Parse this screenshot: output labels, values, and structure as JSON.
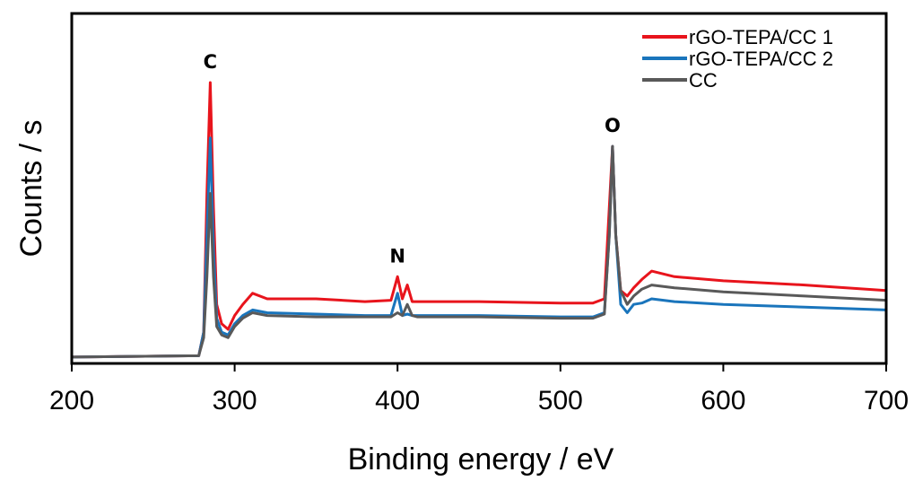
{
  "chart_data": {
    "type": "line",
    "title": "",
    "xlabel": "Binding energy / eV",
    "ylabel": "Counts / s",
    "xlim": [
      200,
      700
    ],
    "ylim": [
      0,
      100
    ],
    "x_ticks": [
      "200",
      "300",
      "400",
      "500",
      "600",
      "700"
    ],
    "grid": false,
    "legend_position": "top-right",
    "peak_labels": [
      {
        "text": "C",
        "x": 285
      },
      {
        "text": "N",
        "x": 400
      },
      {
        "text": "O",
        "x": 532
      }
    ],
    "series": [
      {
        "name": "rGO-TEPA/CC 1",
        "color": "#e8141c",
        "x": [
          200,
          278,
          281,
          283,
          285,
          287,
          289,
          292,
          296,
          300,
          305,
          311,
          320,
          350,
          380,
          396,
          400,
          403,
          406,
          409,
          412,
          450,
          500,
          520,
          527,
          530,
          532,
          534,
          537,
          541,
          545,
          550,
          556,
          570,
          600,
          650,
          700
        ],
        "y": [
          1,
          1.5,
          10,
          60,
          100,
          55,
          20,
          13,
          11,
          16,
          20,
          24,
          22,
          22,
          21,
          21.5,
          30,
          22,
          27,
          21,
          21,
          21,
          20.5,
          20.5,
          22,
          55,
          77,
          45,
          25,
          23,
          26,
          29,
          32,
          30,
          28.5,
          27,
          25
        ]
      },
      {
        "name": "rGO-TEPA/CC 2",
        "color": "#1a75bc",
        "x": [
          200,
          278,
          281,
          283,
          285,
          287,
          289,
          292,
          296,
          300,
          305,
          311,
          320,
          350,
          380,
          396,
          400,
          403,
          406,
          409,
          412,
          450,
          500,
          520,
          527,
          530,
          532,
          534,
          537,
          541,
          545,
          550,
          556,
          570,
          600,
          650,
          700
        ],
        "y": [
          1,
          1.5,
          10,
          45,
          80,
          40,
          15,
          10,
          9,
          13,
          16,
          18,
          17,
          16.5,
          16,
          16,
          24,
          16,
          16.5,
          16,
          16,
          16,
          15.5,
          15.5,
          17,
          45,
          77,
          45,
          20,
          17,
          20,
          20.5,
          22,
          21,
          20,
          19,
          18
        ]
      },
      {
        "name": "CC",
        "color": "#595959",
        "x": [
          200,
          278,
          281,
          283,
          285,
          287,
          289,
          292,
          296,
          300,
          305,
          311,
          320,
          350,
          380,
          396,
          400,
          403,
          406,
          409,
          412,
          450,
          500,
          520,
          527,
          530,
          532,
          534,
          537,
          541,
          545,
          550,
          556,
          570,
          600,
          650,
          700
        ],
        "y": [
          1,
          1.5,
          8,
          30,
          60,
          30,
          12,
          9,
          8,
          12,
          15,
          17,
          16,
          15.5,
          15.5,
          15.5,
          17,
          16,
          20,
          16,
          15.5,
          15.5,
          15,
          15,
          16.5,
          45,
          77,
          45,
          25,
          20,
          23,
          25.5,
          27,
          26,
          24.5,
          23,
          21.5
        ]
      }
    ]
  }
}
